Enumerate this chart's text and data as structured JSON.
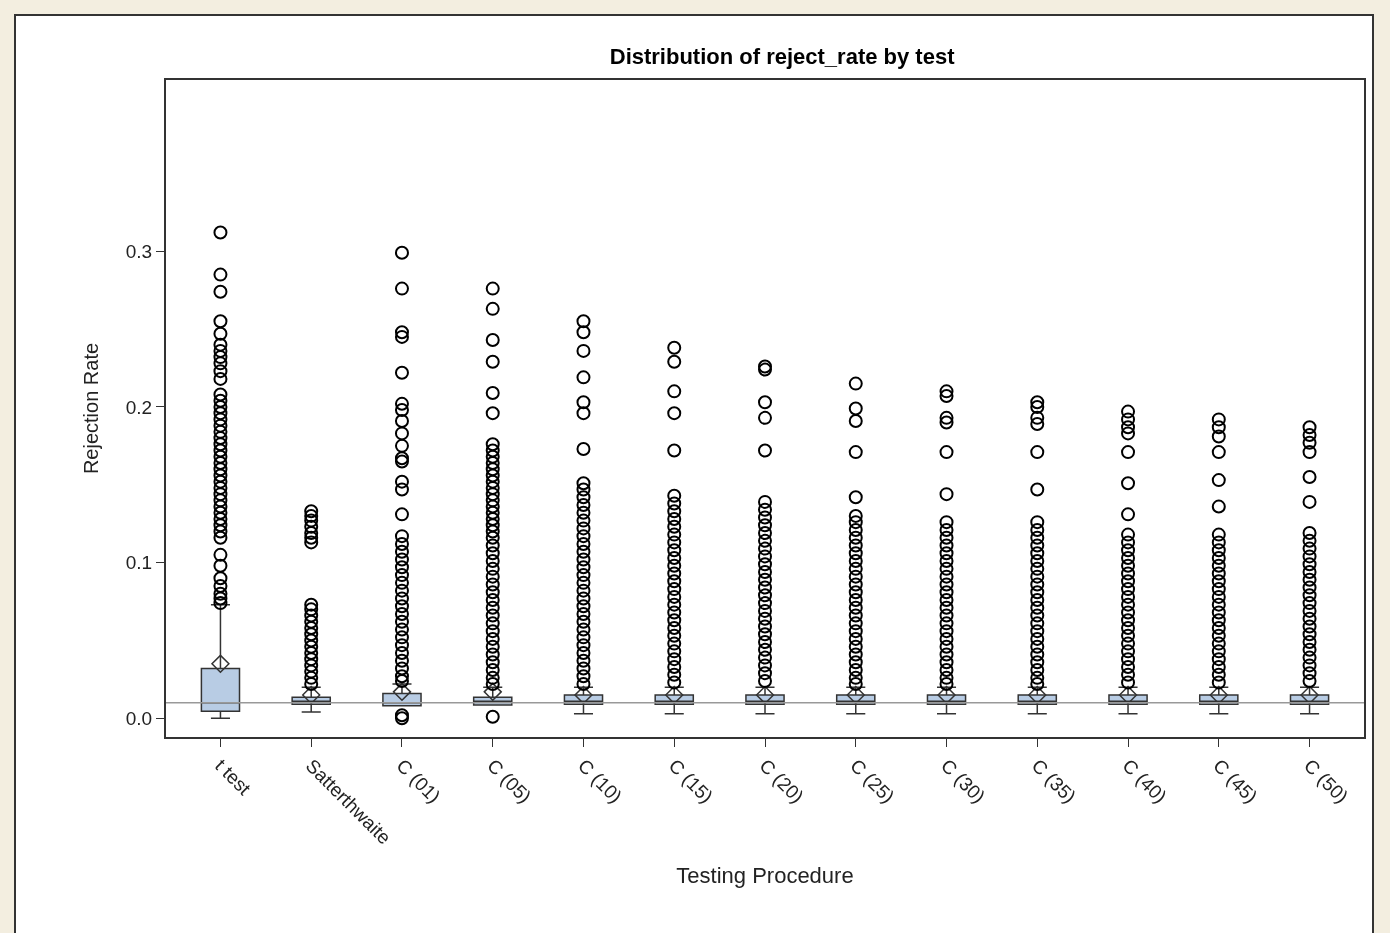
{
  "chart_data": {
    "type": "box",
    "title": "Distribution of reject_rate by test",
    "xlabel": "Testing Procedure",
    "ylabel": "Rejection Rate",
    "categories": [
      "t test",
      "Satterthwaite",
      "C (01)",
      "C (05)",
      "C (10)",
      "C (15)",
      "C (20)",
      "C (25)",
      "C (30)",
      "C (35)",
      "C (40)",
      "C (45)",
      "C (50)"
    ],
    "color": "#b8cce4",
    "ylim": [
      -0.012,
      0.41
    ],
    "yticks": [
      {
        "value": 0,
        "label": "0.0"
      },
      0.1,
      0.2,
      0.3
    ],
    "marker": "circle",
    "ref_lines": [
      {
        "axis": "y",
        "value": 0.01,
        "color": "#999999"
      }
    ],
    "boxes": [
      {
        "low": 0,
        "q1": 0.0045,
        "median": 0.01,
        "q3": 0.032,
        "high": 0.073,
        "mean": 0.035,
        "outliers": [
          0.312,
          0.285,
          0.274,
          0.255,
          0.247,
          0.24,
          0.236,
          0.232,
          0.228,
          0.223,
          0.218,
          0.208,
          0.204,
          0.2,
          0.196,
          0.192,
          0.188,
          0.184,
          0.18,
          0.176,
          0.172,
          0.168,
          0.164,
          0.16,
          0.156,
          0.152,
          0.148,
          0.144,
          0.14,
          0.136,
          0.132,
          0.128,
          0.124,
          0.12,
          0.116,
          0.105,
          0.098,
          0.09,
          0.085,
          0.08,
          0.077,
          0.074
        ]
      },
      {
        "low": 0.004,
        "q1": 0.009,
        "median": 0.011,
        "q3": 0.0135,
        "high": 0.02,
        "mean": 0.015,
        "outliers": [
          0.133,
          0.13,
          0.127,
          0.123,
          0.119,
          0.116,
          0.113,
          0.073,
          0.07,
          0.066,
          0.062,
          0.058,
          0.054,
          0.05,
          0.046,
          0.042,
          0.038,
          0.034,
          0.03,
          0.026,
          0.022
        ]
      },
      {
        "low": 0.008,
        "q1": 0.008,
        "median": 0.01,
        "q3": 0.016,
        "high": 0.022,
        "mean": 0.017,
        "outliers": [
          0.299,
          0.276,
          0.248,
          0.245,
          0.222,
          0.202,
          0.198,
          0.191,
          0.183,
          0.175,
          0.167,
          0.165,
          0.152,
          0.147,
          0.131,
          0.117,
          0.112,
          0.107,
          0.102,
          0.097,
          0.092,
          0.087,
          0.082,
          0.077,
          0.072,
          0.067,
          0.062,
          0.057,
          0.052,
          0.047,
          0.042,
          0.037,
          0.032,
          0.027,
          0.024,
          0.002,
          0
        ]
      },
      {
        "low": 0.0085,
        "q1": 0.0085,
        "median": 0.011,
        "q3": 0.0135,
        "high": 0.02,
        "mean": 0.017,
        "outliers": [
          0.276,
          0.263,
          0.243,
          0.229,
          0.209,
          0.196,
          0.176,
          0.172,
          0.168,
          0.164,
          0.16,
          0.156,
          0.152,
          0.148,
          0.144,
          0.14,
          0.136,
          0.132,
          0.128,
          0.124,
          0.12,
          0.116,
          0.111,
          0.106,
          0.101,
          0.096,
          0.091,
          0.086,
          0.081,
          0.076,
          0.071,
          0.066,
          0.061,
          0.056,
          0.051,
          0.046,
          0.041,
          0.036,
          0.031,
          0.026,
          0.022,
          0.001
        ]
      },
      {
        "low": 0.003,
        "q1": 0.009,
        "median": 0.011,
        "q3": 0.015,
        "high": 0.02,
        "mean": 0.015,
        "outliers": [
          0.255,
          0.248,
          0.236,
          0.219,
          0.203,
          0.196,
          0.173,
          0.151,
          0.147,
          0.142,
          0.137,
          0.132,
          0.127,
          0.122,
          0.117,
          0.112,
          0.107,
          0.102,
          0.097,
          0.092,
          0.087,
          0.082,
          0.077,
          0.072,
          0.067,
          0.062,
          0.057,
          0.052,
          0.047,
          0.042,
          0.037,
          0.032,
          0.027,
          0.022
        ]
      },
      {
        "low": 0.003,
        "q1": 0.009,
        "median": 0.011,
        "q3": 0.015,
        "high": 0.02,
        "mean": 0.015,
        "outliers": [
          0.238,
          0.229,
          0.21,
          0.196,
          0.172,
          0.143,
          0.138,
          0.133,
          0.128,
          0.123,
          0.118,
          0.113,
          0.108,
          0.103,
          0.098,
          0.093,
          0.088,
          0.083,
          0.078,
          0.073,
          0.068,
          0.063,
          0.058,
          0.053,
          0.048,
          0.043,
          0.038,
          0.033,
          0.028,
          0.023
        ]
      },
      {
        "low": 0.003,
        "q1": 0.009,
        "median": 0.011,
        "q3": 0.015,
        "high": 0.02,
        "mean": 0.015,
        "outliers": [
          0.226,
          0.224,
          0.203,
          0.193,
          0.172,
          0.139,
          0.134,
          0.129,
          0.124,
          0.119,
          0.114,
          0.109,
          0.104,
          0.099,
          0.094,
          0.089,
          0.084,
          0.079,
          0.074,
          0.069,
          0.064,
          0.059,
          0.054,
          0.049,
          0.044,
          0.039,
          0.034,
          0.029,
          0.024
        ]
      },
      {
        "low": 0.003,
        "q1": 0.009,
        "median": 0.011,
        "q3": 0.015,
        "high": 0.02,
        "mean": 0.015,
        "outliers": [
          0.215,
          0.199,
          0.191,
          0.171,
          0.142,
          0.13,
          0.126,
          0.121,
          0.116,
          0.111,
          0.106,
          0.101,
          0.096,
          0.091,
          0.086,
          0.081,
          0.076,
          0.071,
          0.066,
          0.061,
          0.056,
          0.051,
          0.046,
          0.041,
          0.036,
          0.031,
          0.026,
          0.022
        ]
      },
      {
        "low": 0.003,
        "q1": 0.009,
        "median": 0.011,
        "q3": 0.015,
        "high": 0.02,
        "mean": 0.015,
        "outliers": [
          0.21,
          0.207,
          0.193,
          0.19,
          0.171,
          0.144,
          0.126,
          0.121,
          0.116,
          0.111,
          0.106,
          0.101,
          0.096,
          0.091,
          0.086,
          0.081,
          0.076,
          0.071,
          0.066,
          0.061,
          0.056,
          0.051,
          0.046,
          0.041,
          0.036,
          0.031,
          0.026,
          0.022
        ]
      },
      {
        "low": 0.003,
        "q1": 0.009,
        "median": 0.011,
        "q3": 0.015,
        "high": 0.02,
        "mean": 0.015,
        "outliers": [
          0.203,
          0.2,
          0.193,
          0.189,
          0.171,
          0.147,
          0.126,
          0.121,
          0.116,
          0.111,
          0.106,
          0.101,
          0.096,
          0.091,
          0.086,
          0.081,
          0.076,
          0.071,
          0.066,
          0.061,
          0.056,
          0.051,
          0.046,
          0.041,
          0.036,
          0.031,
          0.026,
          0.022
        ]
      },
      {
        "low": 0.003,
        "q1": 0.009,
        "median": 0.011,
        "q3": 0.015,
        "high": 0.02,
        "mean": 0.015,
        "outliers": [
          0.197,
          0.192,
          0.187,
          0.183,
          0.171,
          0.151,
          0.131,
          0.118,
          0.113,
          0.108,
          0.103,
          0.098,
          0.093,
          0.088,
          0.083,
          0.078,
          0.073,
          0.068,
          0.063,
          0.058,
          0.053,
          0.048,
          0.043,
          0.038,
          0.033,
          0.028,
          0.023
        ]
      },
      {
        "low": 0.003,
        "q1": 0.009,
        "median": 0.011,
        "q3": 0.015,
        "high": 0.02,
        "mean": 0.015,
        "outliers": [
          0.192,
          0.187,
          0.181,
          0.171,
          0.153,
          0.136,
          0.118,
          0.113,
          0.108,
          0.103,
          0.098,
          0.093,
          0.088,
          0.083,
          0.078,
          0.073,
          0.068,
          0.063,
          0.058,
          0.053,
          0.048,
          0.043,
          0.038,
          0.033,
          0.028,
          0.023
        ]
      },
      {
        "low": 0.003,
        "q1": 0.009,
        "median": 0.011,
        "q3": 0.015,
        "high": 0.02,
        "mean": 0.015,
        "outliers": [
          0.187,
          0.182,
          0.177,
          0.171,
          0.155,
          0.139,
          0.119,
          0.114,
          0.109,
          0.104,
          0.099,
          0.094,
          0.089,
          0.084,
          0.079,
          0.074,
          0.069,
          0.064,
          0.059,
          0.054,
          0.049,
          0.044,
          0.039,
          0.034,
          0.029,
          0.024
        ]
      }
    ]
  }
}
